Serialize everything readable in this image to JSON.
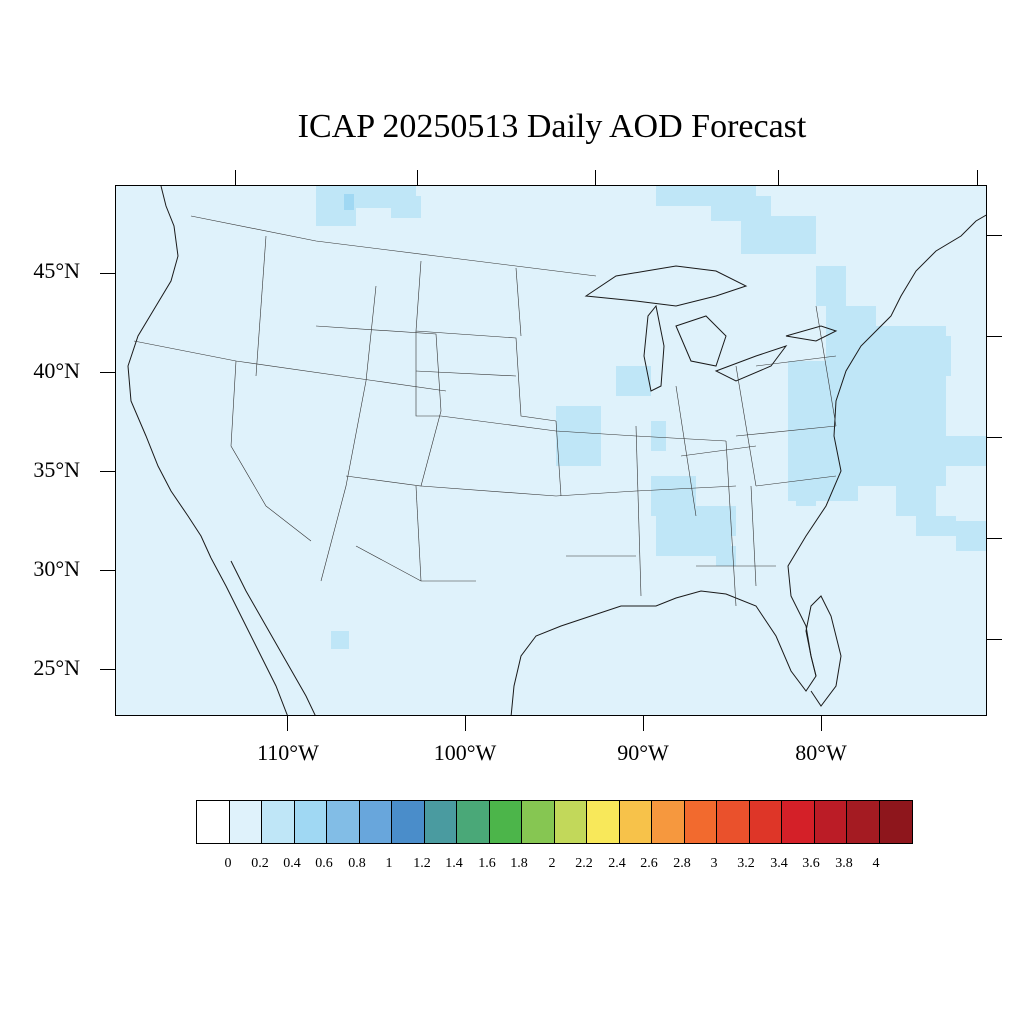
{
  "title": "ICAP 20250513 Daily AOD Forecast",
  "map": {
    "region": "Contiguous United States",
    "background_color": "#dff2fb",
    "lat_labels": [
      "45°N",
      "40°N",
      "35°N",
      "30°N",
      "25°N"
    ],
    "lon_labels": [
      "110°W",
      "100°W",
      "90°W",
      "80°W"
    ]
  },
  "colorbar": {
    "colors": [
      "#ffffff",
      "#dff2fb",
      "#bfe6f7",
      "#a0d8f3",
      "#82bde6",
      "#68a6dc",
      "#4a8dca",
      "#4a9ba0",
      "#4aa878",
      "#4cb54a",
      "#86c652",
      "#c2d85a",
      "#f8e85a",
      "#f7c24a",
      "#f6983e",
      "#f26a2e",
      "#ea512c",
      "#de3628",
      "#d42028",
      "#bb1c26",
      "#a41b22",
      "#8e161c"
    ],
    "labels": [
      "0",
      "0.2",
      "0.4",
      "0.6",
      "0.8",
      "1",
      "1.2",
      "1.4",
      "1.6",
      "1.8",
      "2",
      "2.2",
      "2.4",
      "2.6",
      "2.8",
      "3",
      "3.2",
      "3.4",
      "3.6",
      "3.8",
      "4"
    ]
  }
}
